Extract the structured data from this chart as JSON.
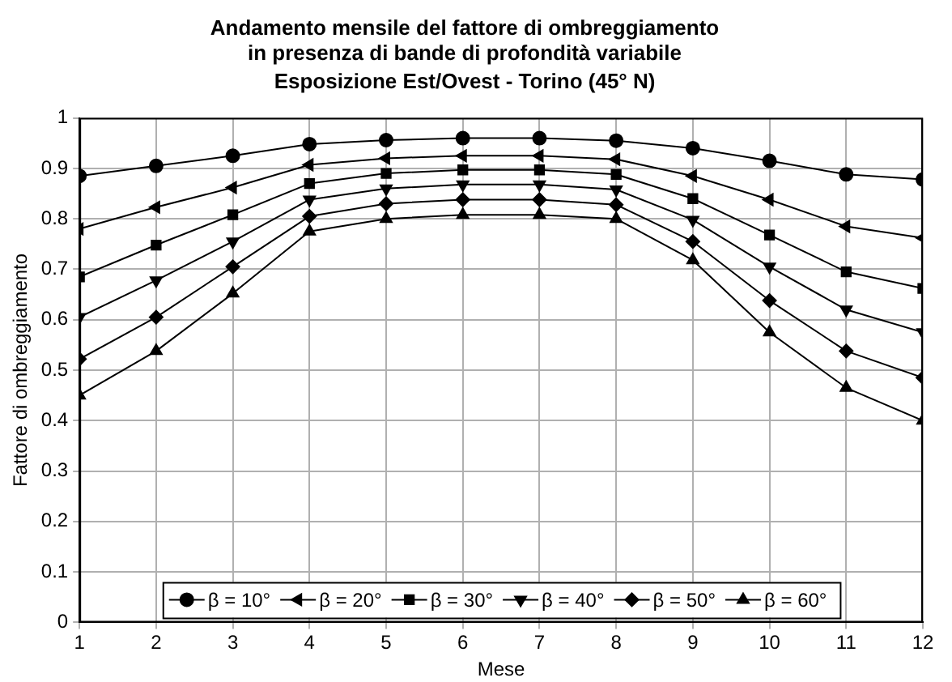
{
  "chart_data": {
    "type": "line",
    "title": "Andamento mensile del fattore di ombreggiamento\nin presenza di bande di profondità variabile",
    "subtitle": "Esposizione Est/Ovest - Torino (45° N)",
    "xlabel": "Mese",
    "ylabel": "Fattore di ombreggiamento",
    "x": [
      1,
      2,
      3,
      4,
      5,
      6,
      7,
      8,
      9,
      10,
      11,
      12
    ],
    "xlim": [
      1,
      12
    ],
    "xticks": [
      1,
      2,
      3,
      4,
      5,
      6,
      7,
      8,
      9,
      10,
      11,
      12
    ],
    "ylim": [
      0,
      1
    ],
    "yticks": [
      0,
      0.1,
      0.2,
      0.3,
      0.4,
      0.5,
      0.6,
      0.7,
      0.8,
      0.9,
      1
    ],
    "grid": true,
    "legend": "bottom",
    "line_style": "solid",
    "series": [
      {
        "name": "β = 10°",
        "color": "#000000",
        "marker": "circle",
        "values": [
          0.885,
          0.905,
          0.925,
          0.948,
          0.956,
          0.96,
          0.96,
          0.955,
          0.94,
          0.915,
          0.888,
          0.878
        ]
      },
      {
        "name": "β = 20°",
        "color": "#000000",
        "marker": "triangle-left",
        "values": [
          0.78,
          0.823,
          0.862,
          0.907,
          0.92,
          0.925,
          0.925,
          0.918,
          0.885,
          0.838,
          0.785,
          0.762
        ]
      },
      {
        "name": "β = 30°",
        "color": "#000000",
        "marker": "square",
        "values": [
          0.685,
          0.748,
          0.808,
          0.87,
          0.89,
          0.897,
          0.897,
          0.888,
          0.84,
          0.768,
          0.695,
          0.662
        ]
      },
      {
        "name": "β = 40°",
        "color": "#000000",
        "marker": "triangle-down",
        "values": [
          0.605,
          0.678,
          0.755,
          0.838,
          0.86,
          0.868,
          0.868,
          0.858,
          0.798,
          0.705,
          0.62,
          0.575
        ]
      },
      {
        "name": "β = 50°",
        "color": "#000000",
        "marker": "diamond",
        "values": [
          0.522,
          0.605,
          0.705,
          0.805,
          0.83,
          0.838,
          0.838,
          0.828,
          0.755,
          0.638,
          0.538,
          0.485
        ]
      },
      {
        "name": "β = 60°",
        "color": "#000000",
        "marker": "triangle",
        "values": [
          0.45,
          0.538,
          0.652,
          0.775,
          0.8,
          0.808,
          0.808,
          0.8,
          0.718,
          0.575,
          0.465,
          0.4
        ]
      }
    ]
  }
}
